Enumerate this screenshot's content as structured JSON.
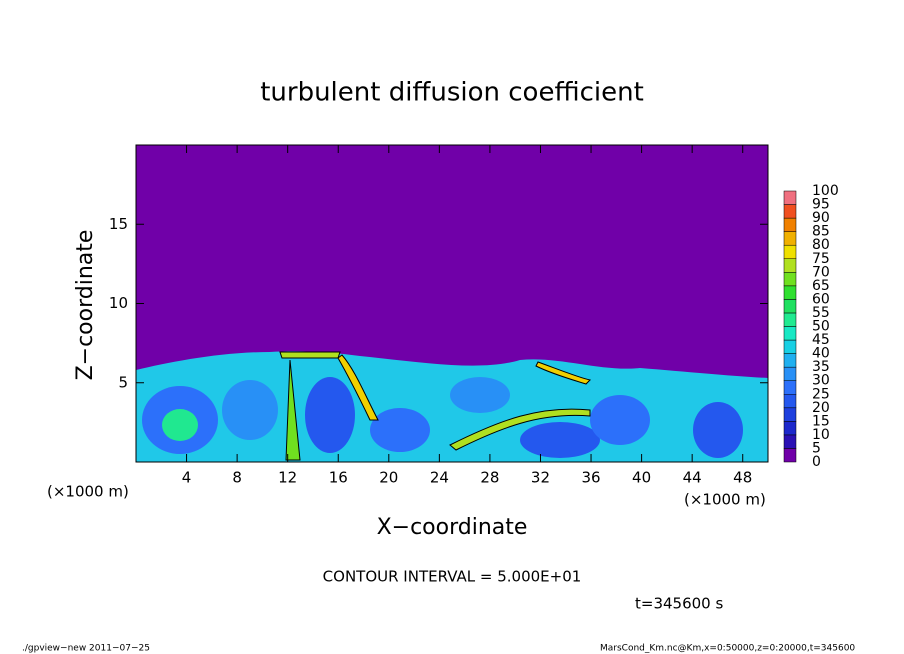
{
  "chart_data": {
    "type": "heatmap",
    "title": "turbulent diffusion coefficient",
    "xlabel": "X−coordinate",
    "ylabel": "Z−coordinate",
    "x_unit": "(×1000 m)",
    "y_unit": "(×1000 m)",
    "xlim": [
      0,
      50
    ],
    "ylim": [
      0,
      20
    ],
    "xticks": [
      4,
      8,
      12,
      16,
      20,
      24,
      28,
      32,
      36,
      40,
      44,
      48
    ],
    "yticks": [
      5,
      10,
      15
    ],
    "colorbar": {
      "levels": [
        0,
        5,
        10,
        15,
        20,
        25,
        30,
        35,
        40,
        45,
        50,
        55,
        60,
        65,
        70,
        75,
        80,
        85,
        90,
        95,
        100
      ],
      "colors": [
        "#7000a8",
        "#2a10b4",
        "#1c28cc",
        "#1e40de",
        "#2458ee",
        "#2c70fa",
        "#2890f6",
        "#20b0f0",
        "#18d0e4",
        "#18e8c4",
        "#20ea90",
        "#20e060",
        "#30e030",
        "#70e020",
        "#b0e020",
        "#f0e000",
        "#f0b000",
        "#f08000",
        "#f05020",
        "#f07080"
      ]
    },
    "contour_interval": "CONTOUR INTERVAL = 5.000E+01",
    "time_label": "t=345600 s",
    "footer_left": "./gpview−new  2011−07−25",
    "footer_right": "MarsCond_Km.nc@Km,x=0:50000,z=0:20000,t=345600"
  }
}
